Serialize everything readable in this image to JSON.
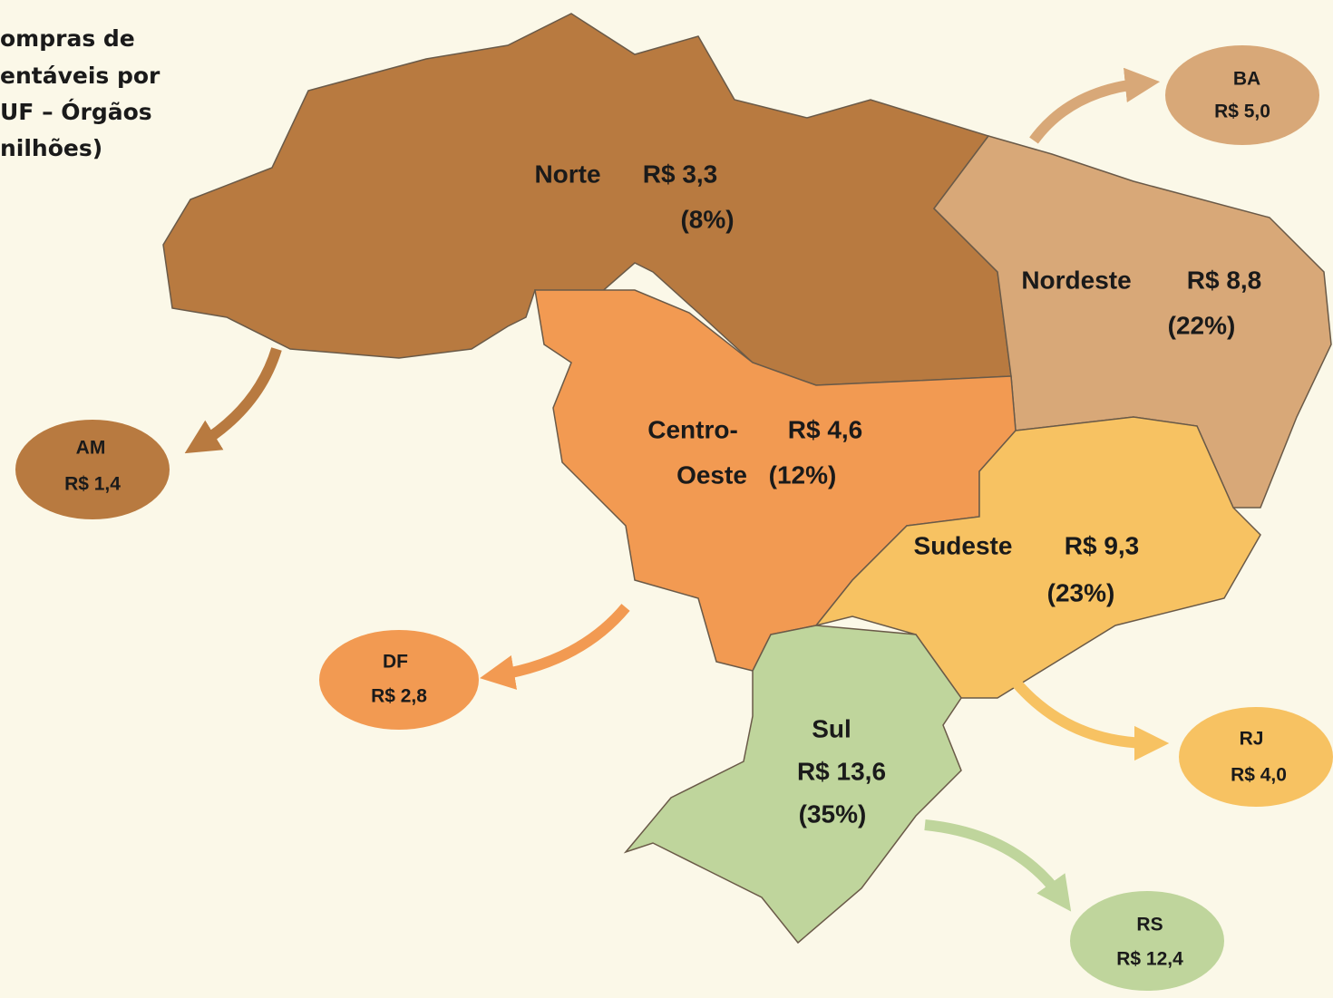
{
  "title_lines": [
    "ompras de",
    "entáveis por",
    "UF – Órgãos",
    "nilhões)"
  ],
  "regions": [
    {
      "name": "Norte",
      "value": "R$ 3,3",
      "share": "(8%)"
    },
    {
      "name": "Nordeste",
      "value": "R$ 8,8",
      "share": "(22%)"
    },
    {
      "name_lines": [
        "Centro-",
        "Oeste"
      ],
      "value": "R$ 4,6",
      "share": "(12%)"
    },
    {
      "name": "Sudeste",
      "value": "R$ 9,3",
      "share": "(23%)"
    },
    {
      "name": "Sul",
      "value": "R$ 13,6",
      "share": "(35%)"
    }
  ],
  "states": [
    {
      "name": "BA",
      "value": "R$ 5,0"
    },
    {
      "name": "AM",
      "value": "R$ 1,4"
    },
    {
      "name": "DF",
      "value": "R$ 2,8"
    },
    {
      "name": "RJ",
      "value": "R$ 4,0"
    },
    {
      "name": "RS",
      "value": "R$ 12,4"
    }
  ]
}
